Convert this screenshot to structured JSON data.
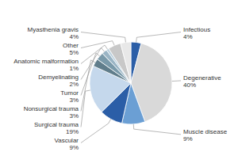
{
  "chart_data": {
    "type": "pie",
    "categories": [
      "Infectious",
      "Degenerative",
      "Muscle disease",
      "Vascular",
      "Surgical trauma",
      "Nonsurgical trauma",
      "Tumor",
      "Demyelinating",
      "Anatomic malformation",
      "Other",
      "Myasthenia gravis"
    ],
    "values": [
      4,
      40,
      9,
      9,
      19,
      3,
      3,
      2,
      1,
      5,
      4
    ],
    "value_labels": [
      "4%",
      "40%",
      "9%",
      "9%",
      "19%",
      "3%",
      "3%",
      "2%",
      "1%",
      "5%",
      "4%"
    ],
    "data_labels": true,
    "colors": [
      "#2b5ea7",
      "#d9d9d9",
      "#6b9fd4",
      "#2b5ea7",
      "#c5d8ec",
      "#607d8b",
      "#7a9aaa",
      "#9ab5c5",
      "#bad0de",
      "#c8c8c8",
      "#e8e8e8"
    ]
  }
}
